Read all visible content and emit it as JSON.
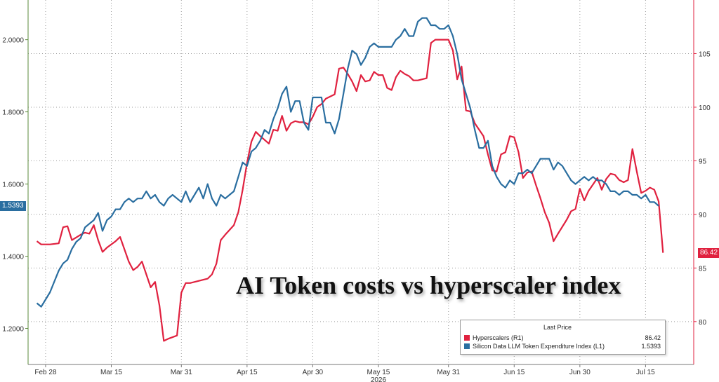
{
  "chart_data": {
    "type": "line",
    "title": "AI Token costs vs hyperscaler index",
    "year_label": "2026",
    "x_ticks": [
      "Feb 28",
      "Mar 15",
      "Mar 31",
      "Apr 15",
      "Apr 30",
      "May 15",
      "May 31",
      "Jun 15",
      "Jun 30",
      "Jul 15"
    ],
    "legend": {
      "header": "Last Price",
      "placement": "bottom-right"
    },
    "left_axis": {
      "ticks": [
        "1.2000",
        "1.4000",
        "1.6000",
        "1.8000",
        "2.0000"
      ],
      "range": [
        1.1,
        2.11
      ]
    },
    "right_axis": {
      "ticks": [
        "80",
        "85",
        "90",
        "95",
        "100",
        "105"
      ],
      "range": [
        76,
        110
      ]
    },
    "grid": true,
    "series": [
      {
        "name": "Hyperscalers (R1)",
        "axis": "right",
        "color": "#e0213f",
        "last_value": "86.42",
        "points": [
          [
            "Feb 26",
            87.5
          ],
          [
            "Feb 27",
            87.2
          ],
          [
            "Mar 1",
            87.2
          ],
          [
            "Mar 3",
            87.3
          ],
          [
            "Mar 4",
            88.8
          ],
          [
            "Mar 5",
            88.9
          ],
          [
            "Mar 6",
            87.6
          ],
          [
            "Mar 8",
            88.1
          ],
          [
            "Mar 9",
            88.3
          ],
          [
            "Mar 10",
            88.2
          ],
          [
            "Mar 11",
            89.0
          ],
          [
            "Mar 12",
            87.6
          ],
          [
            "Mar 13",
            86.5
          ],
          [
            "Mar 14",
            86.9
          ],
          [
            "Mar 16",
            87.5
          ],
          [
            "Mar 17",
            87.9
          ],
          [
            "Mar 19",
            85.6
          ],
          [
            "Mar 20",
            84.8
          ],
          [
            "Mar 21",
            85.1
          ],
          [
            "Mar 22",
            85.6
          ],
          [
            "Mar 24",
            83.2
          ],
          [
            "Mar 25",
            83.7
          ],
          [
            "Mar 26",
            81.5
          ],
          [
            "Mar 27",
            78.2
          ],
          [
            "Mar 28",
            78.4
          ],
          [
            "Mar 30",
            78.7
          ],
          [
            "Mar 31",
            82.7
          ],
          [
            "Apr 1",
            83.6
          ],
          [
            "Apr 2",
            83.6
          ],
          [
            "Apr 4",
            83.8
          ],
          [
            "Apr 6",
            84.0
          ],
          [
            "Apr 7",
            84.4
          ],
          [
            "Apr 8",
            85.4
          ],
          [
            "Apr 9",
            87.6
          ],
          [
            "Apr 10",
            88.1
          ],
          [
            "Apr 12",
            89.0
          ],
          [
            "Apr 13",
            90.2
          ],
          [
            "Apr 14",
            92.3
          ],
          [
            "Apr 15",
            94.8
          ],
          [
            "Apr 16",
            96.8
          ],
          [
            "Apr 17",
            97.7
          ],
          [
            "Apr 18",
            97.3
          ],
          [
            "Apr 20",
            96.6
          ],
          [
            "Apr 21",
            97.9
          ],
          [
            "Apr 22",
            97.8
          ],
          [
            "Apr 23",
            99.2
          ],
          [
            "Apr 24",
            97.8
          ],
          [
            "Apr 25",
            98.5
          ],
          [
            "Apr 26",
            98.7
          ],
          [
            "Apr 27",
            98.6
          ],
          [
            "Apr 28",
            98.6
          ],
          [
            "Apr 29",
            98.4
          ],
          [
            "Apr 30",
            99.1
          ],
          [
            "May 1",
            100.0
          ],
          [
            "May 2",
            100.3
          ],
          [
            "May 3",
            100.8
          ],
          [
            "May 5",
            101.2
          ],
          [
            "May 6",
            103.6
          ],
          [
            "May 7",
            103.7
          ],
          [
            "May 8",
            103.1
          ],
          [
            "May 9",
            102.4
          ],
          [
            "May 10",
            101.5
          ],
          [
            "May 11",
            103.0
          ],
          [
            "May 12",
            102.4
          ],
          [
            "May 13",
            102.5
          ],
          [
            "May 14",
            103.3
          ],
          [
            "May 15",
            103.0
          ],
          [
            "May 16",
            103.0
          ],
          [
            "May 17",
            101.8
          ],
          [
            "May 18",
            101.6
          ],
          [
            "May 19",
            102.8
          ],
          [
            "May 20",
            103.4
          ],
          [
            "May 21",
            103.1
          ],
          [
            "May 22",
            102.9
          ],
          [
            "May 23",
            102.5
          ],
          [
            "May 24",
            102.5
          ],
          [
            "May 26",
            102.7
          ],
          [
            "May 27",
            106.0
          ],
          [
            "May 28",
            106.3
          ],
          [
            "May 29",
            106.3
          ],
          [
            "May 30",
            106.3
          ],
          [
            "May 31",
            106.3
          ],
          [
            "Jun 1",
            105.3
          ],
          [
            "Jun 2",
            102.6
          ],
          [
            "Jun 3",
            103.8
          ],
          [
            "Jun 4",
            99.7
          ],
          [
            "Jun 5",
            99.6
          ],
          [
            "Jun 6",
            98.5
          ],
          [
            "Jun 8",
            97.3
          ],
          [
            "Jun 9",
            95.6
          ],
          [
            "Jun 10",
            94.1
          ],
          [
            "Jun 11",
            94.0
          ],
          [
            "Jun 12",
            95.6
          ],
          [
            "Jun 13",
            95.8
          ],
          [
            "Jun 14",
            97.3
          ],
          [
            "Jun 15",
            97.2
          ],
          [
            "Jun 16",
            95.8
          ],
          [
            "Jun 17",
            93.4
          ],
          [
            "Jun 18",
            93.9
          ],
          [
            "Jun 19",
            94.0
          ],
          [
            "Jun 20",
            92.7
          ],
          [
            "Jun 21",
            91.5
          ],
          [
            "Jun 22",
            90.2
          ],
          [
            "Jun 23",
            89.2
          ],
          [
            "Jun 24",
            87.5
          ],
          [
            "Jun 25",
            88.2
          ],
          [
            "Jun 27",
            89.5
          ],
          [
            "Jun 28",
            90.3
          ],
          [
            "Jun 29",
            90.5
          ],
          [
            "Jun 30",
            92.4
          ],
          [
            "Jul 1",
            91.3
          ],
          [
            "Jul 2",
            92.2
          ],
          [
            "Jul 3",
            92.8
          ],
          [
            "Jul 4",
            93.4
          ],
          [
            "Jul 5",
            92.3
          ],
          [
            "Jul 6",
            93.3
          ],
          [
            "Jul 7",
            93.8
          ],
          [
            "Jul 8",
            93.7
          ],
          [
            "Jul 9",
            93.2
          ],
          [
            "Jul 10",
            93.0
          ],
          [
            "Jul 11",
            93.2
          ],
          [
            "Jul 12",
            96.1
          ],
          [
            "Jul 13",
            94.0
          ],
          [
            "Jul 14",
            92.0
          ],
          [
            "Jul 15",
            92.2
          ],
          [
            "Jul 16",
            92.5
          ],
          [
            "Jul 17",
            92.3
          ],
          [
            "Jul 18",
            91.2
          ],
          [
            "Jul 19",
            86.42
          ]
        ]
      },
      {
        "name": "Silicon Data LLM Token Expenditure Index (L1)",
        "axis": "left",
        "color": "#2a6ea0",
        "last_value": "1.5393",
        "points": [
          [
            "Feb 26",
            1.27
          ],
          [
            "Feb 27",
            1.26
          ],
          [
            "Mar 1",
            1.3
          ],
          [
            "Mar 2",
            1.33
          ],
          [
            "Mar 3",
            1.36
          ],
          [
            "Mar 4",
            1.38
          ],
          [
            "Mar 5",
            1.39
          ],
          [
            "Mar 6",
            1.42
          ],
          [
            "Mar 7",
            1.44
          ],
          [
            "Mar 8",
            1.45
          ],
          [
            "Mar 9",
            1.48
          ],
          [
            "Mar 10",
            1.49
          ],
          [
            "Mar 11",
            1.5
          ],
          [
            "Mar 12",
            1.52
          ],
          [
            "Mar 13",
            1.47
          ],
          [
            "Mar 14",
            1.5
          ],
          [
            "Mar 15",
            1.51
          ],
          [
            "Mar 16",
            1.53
          ],
          [
            "Mar 17",
            1.53
          ],
          [
            "Mar 18",
            1.55
          ],
          [
            "Mar 19",
            1.56
          ],
          [
            "Mar 20",
            1.55
          ],
          [
            "Mar 21",
            1.56
          ],
          [
            "Mar 22",
            1.56
          ],
          [
            "Mar 23",
            1.58
          ],
          [
            "Mar 24",
            1.56
          ],
          [
            "Mar 25",
            1.57
          ],
          [
            "Mar 26",
            1.55
          ],
          [
            "Mar 27",
            1.54
          ],
          [
            "Mar 28",
            1.56
          ],
          [
            "Mar 29",
            1.57
          ],
          [
            "Mar 30",
            1.56
          ],
          [
            "Mar 31",
            1.55
          ],
          [
            "Apr 1",
            1.58
          ],
          [
            "Apr 2",
            1.55
          ],
          [
            "Apr 3",
            1.57
          ],
          [
            "Apr 4",
            1.59
          ],
          [
            "Apr 5",
            1.56
          ],
          [
            "Apr 6",
            1.6
          ],
          [
            "Apr 7",
            1.56
          ],
          [
            "Apr 8",
            1.54
          ],
          [
            "Apr 9",
            1.57
          ],
          [
            "Apr 10",
            1.56
          ],
          [
            "Apr 11",
            1.57
          ],
          [
            "Apr 12",
            1.58
          ],
          [
            "Apr 13",
            1.62
          ],
          [
            "Apr 14",
            1.66
          ],
          [
            "Apr 15",
            1.65
          ],
          [
            "Apr 16",
            1.69
          ],
          [
            "Apr 17",
            1.7
          ],
          [
            "Apr 18",
            1.72
          ],
          [
            "Apr 19",
            1.75
          ],
          [
            "Apr 20",
            1.74
          ],
          [
            "Apr 21",
            1.78
          ],
          [
            "Apr 22",
            1.81
          ],
          [
            "Apr 23",
            1.85
          ],
          [
            "Apr 24",
            1.87
          ],
          [
            "Apr 25",
            1.8
          ],
          [
            "Apr 26",
            1.83
          ],
          [
            "Apr 27",
            1.83
          ],
          [
            "Apr 28",
            1.77
          ],
          [
            "Apr 29",
            1.75
          ],
          [
            "Apr 30",
            1.84
          ],
          [
            "May 1",
            1.84
          ],
          [
            "May 2",
            1.84
          ],
          [
            "May 3",
            1.77
          ],
          [
            "May 4",
            1.77
          ],
          [
            "May 5",
            1.74
          ],
          [
            "May 6",
            1.78
          ],
          [
            "May 7",
            1.85
          ],
          [
            "May 8",
            1.92
          ],
          [
            "May 9",
            1.97
          ],
          [
            "May 10",
            1.96
          ],
          [
            "May 11",
            1.93
          ],
          [
            "May 12",
            1.95
          ],
          [
            "May 13",
            1.98
          ],
          [
            "May 14",
            1.99
          ],
          [
            "May 15",
            1.98
          ],
          [
            "May 16",
            1.98
          ],
          [
            "May 17",
            1.98
          ],
          [
            "May 18",
            1.98
          ],
          [
            "May 19",
            2.0
          ],
          [
            "May 20",
            2.01
          ],
          [
            "May 21",
            2.03
          ],
          [
            "May 22",
            2.01
          ],
          [
            "May 23",
            2.01
          ],
          [
            "May 24",
            2.05
          ],
          [
            "May 25",
            2.06
          ],
          [
            "May 26",
            2.06
          ],
          [
            "May 27",
            2.04
          ],
          [
            "May 28",
            2.04
          ],
          [
            "May 29",
            2.03
          ],
          [
            "May 30",
            2.03
          ],
          [
            "May 31",
            2.04
          ],
          [
            "Jun 1",
            2.01
          ],
          [
            "Jun 2",
            1.96
          ],
          [
            "Jun 3",
            1.89
          ],
          [
            "Jun 4",
            1.85
          ],
          [
            "Jun 5",
            1.81
          ],
          [
            "Jun 6",
            1.75
          ],
          [
            "Jun 7",
            1.7
          ],
          [
            "Jun 8",
            1.7
          ],
          [
            "Jun 9",
            1.72
          ],
          [
            "Jun 10",
            1.65
          ],
          [
            "Jun 11",
            1.62
          ],
          [
            "Jun 12",
            1.6
          ],
          [
            "Jun 13",
            1.59
          ],
          [
            "Jun 14",
            1.61
          ],
          [
            "Jun 15",
            1.6
          ],
          [
            "Jun 16",
            1.63
          ],
          [
            "Jun 17",
            1.63
          ],
          [
            "Jun 18",
            1.64
          ],
          [
            "Jun 19",
            1.63
          ],
          [
            "Jun 20",
            1.65
          ],
          [
            "Jun 21",
            1.67
          ],
          [
            "Jun 22",
            1.67
          ],
          [
            "Jun 23",
            1.67
          ],
          [
            "Jun 24",
            1.64
          ],
          [
            "Jun 25",
            1.66
          ],
          [
            "Jun 26",
            1.65
          ],
          [
            "Jun 27",
            1.63
          ],
          [
            "Jun 28",
            1.61
          ],
          [
            "Jun 29",
            1.6
          ],
          [
            "Jun 30",
            1.61
          ],
          [
            "Jul 1",
            1.62
          ],
          [
            "Jul 2",
            1.61
          ],
          [
            "Jul 3",
            1.62
          ],
          [
            "Jul 4",
            1.61
          ],
          [
            "Jul 5",
            1.61
          ],
          [
            "Jul 6",
            1.6
          ],
          [
            "Jul 7",
            1.58
          ],
          [
            "Jul 8",
            1.58
          ],
          [
            "Jul 9",
            1.57
          ],
          [
            "Jul 10",
            1.58
          ],
          [
            "Jul 11",
            1.58
          ],
          [
            "Jul 12",
            1.57
          ],
          [
            "Jul 13",
            1.57
          ],
          [
            "Jul 14",
            1.56
          ],
          [
            "Jul 15",
            1.57
          ],
          [
            "Jul 16",
            1.55
          ],
          [
            "Jul 17",
            1.55
          ],
          [
            "Jul 18",
            1.5393
          ]
        ]
      }
    ]
  }
}
